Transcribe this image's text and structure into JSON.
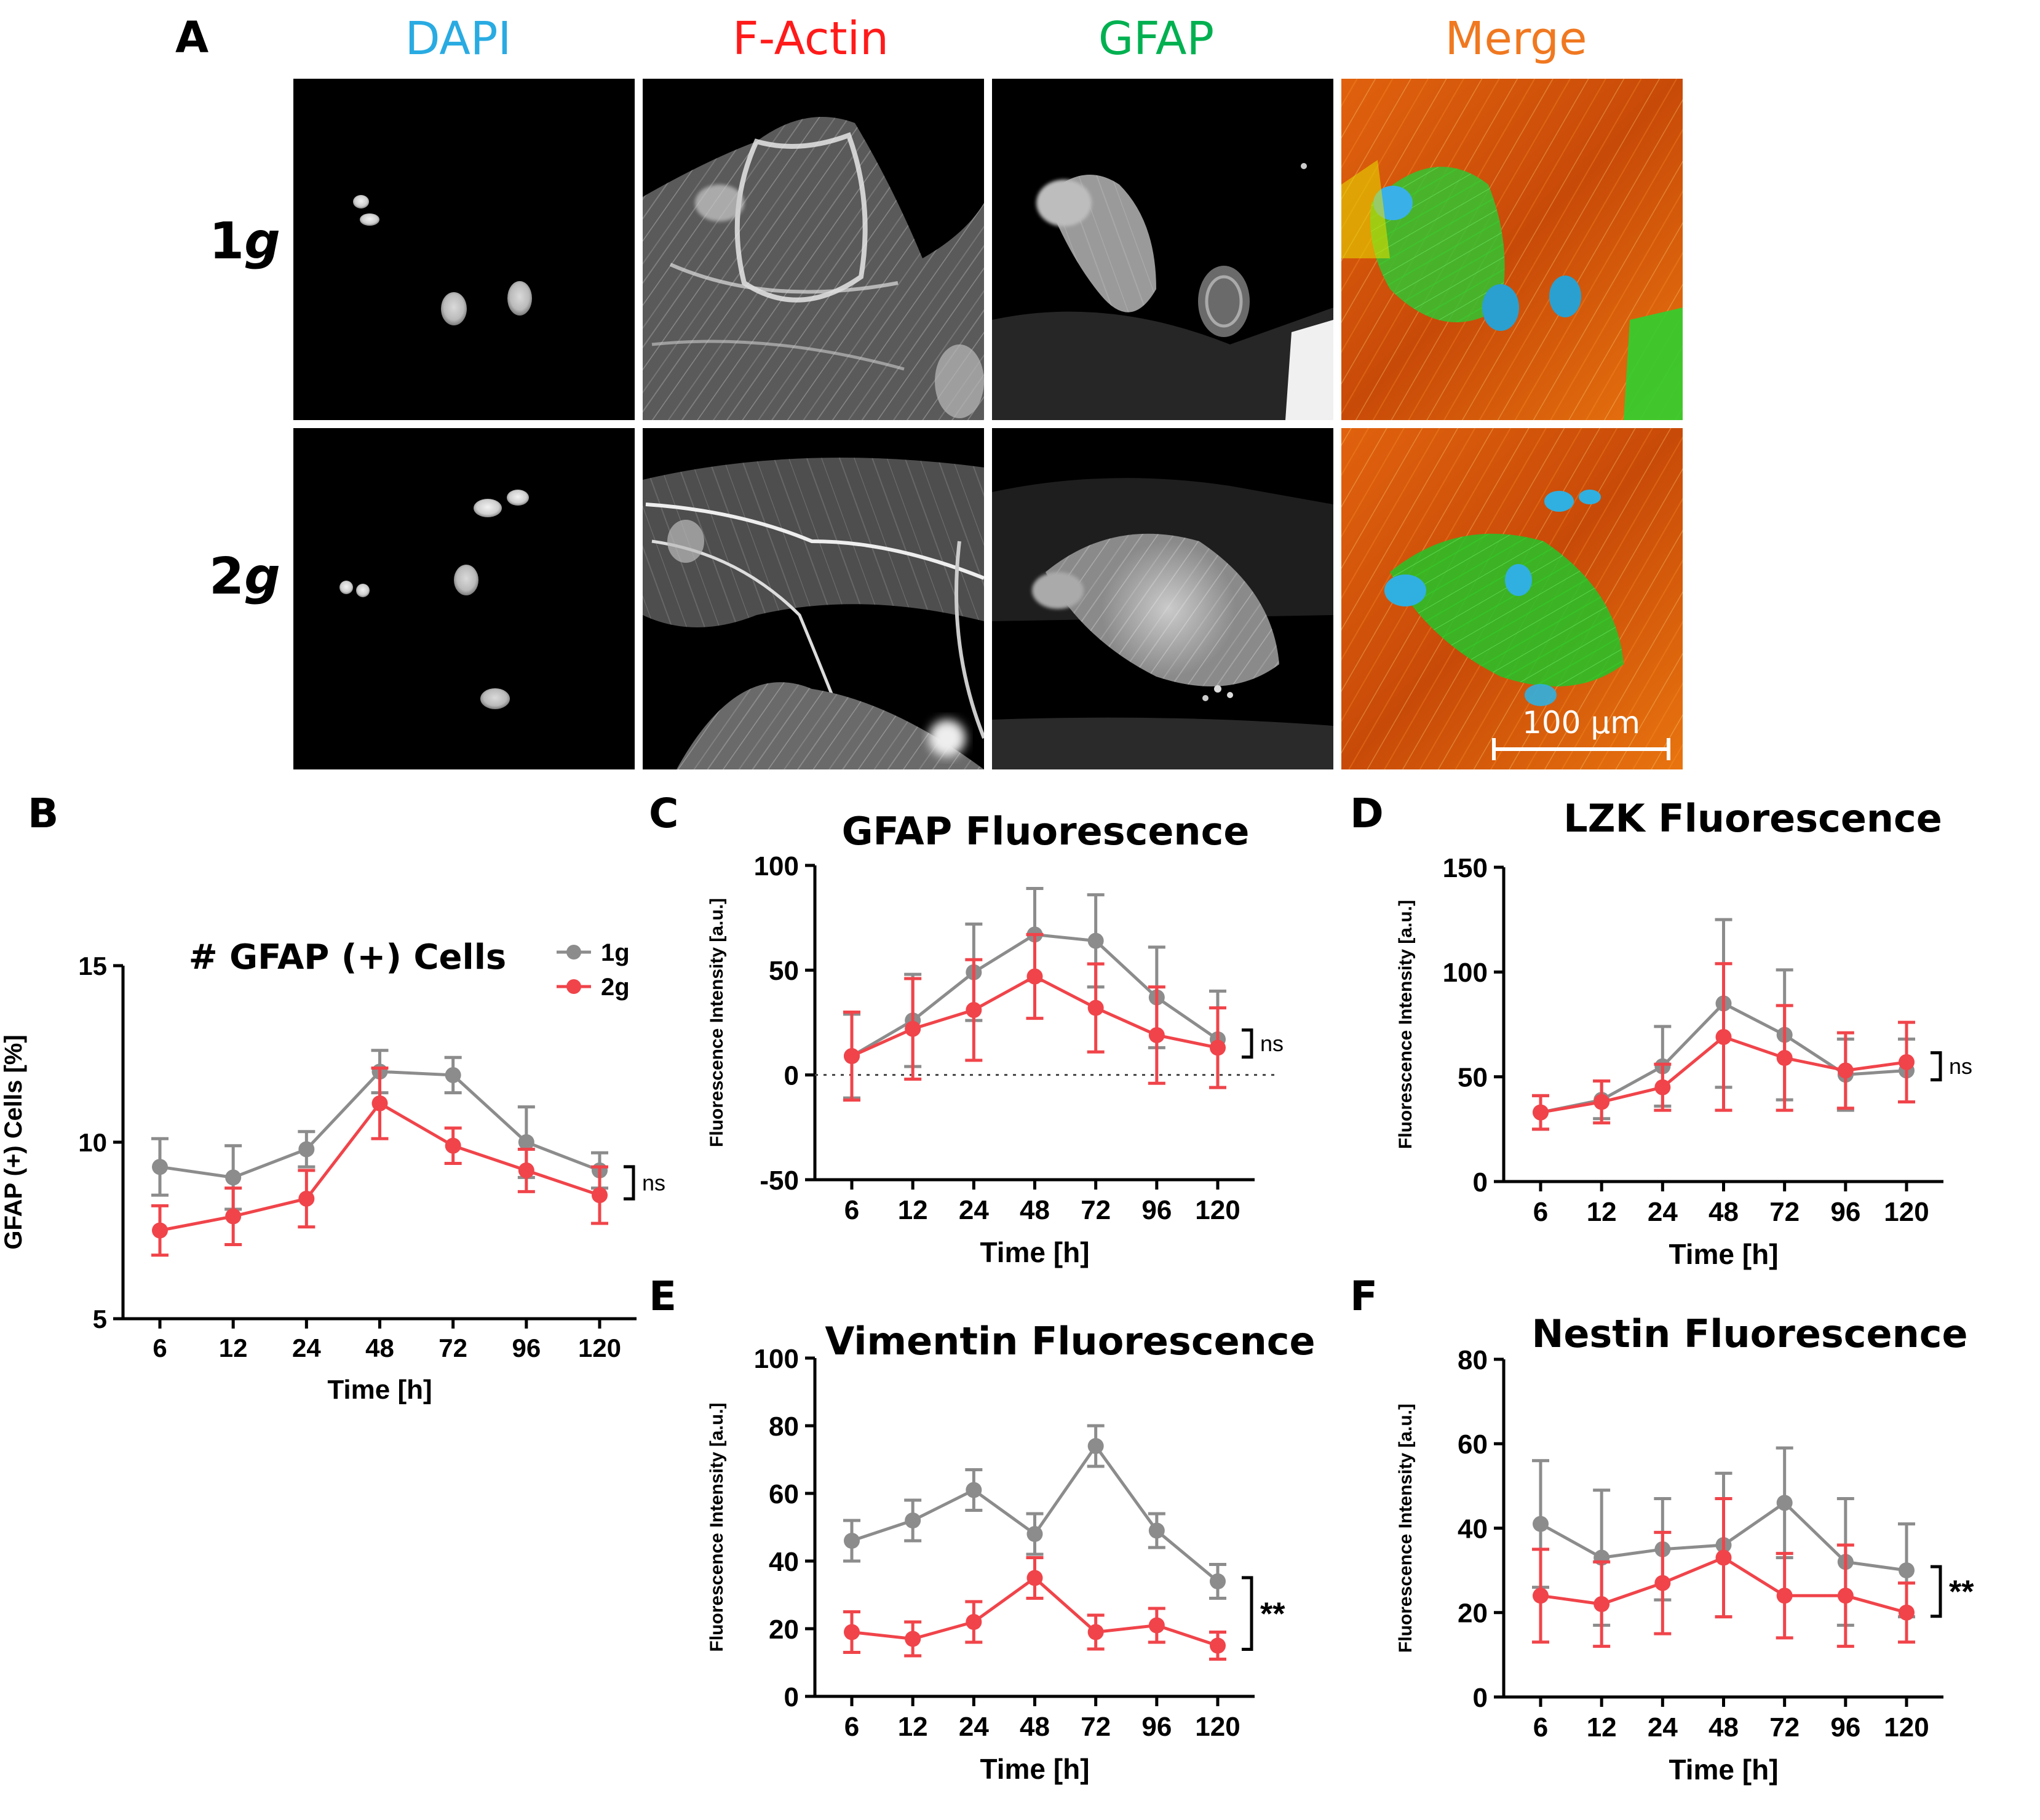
{
  "figure": {
    "panel_a": {
      "letter": "A",
      "channels": [
        {
          "label": "DAPI",
          "color": "#29abe2"
        },
        {
          "label": "F-Actin",
          "color": "#ff1a1a"
        },
        {
          "label": "GFAP",
          "color": "#00b050"
        },
        {
          "label": "Merge",
          "color": "#f07820"
        }
      ],
      "rows": [
        {
          "label_main": "1",
          "label_italic": "g"
        },
        {
          "label_main": "2",
          "label_italic": "g"
        }
      ],
      "scale_bar": "100 µm"
    },
    "colors": {
      "one_g": "#8c8c8c",
      "two_g": "#f0444a",
      "axis": "#000000"
    }
  },
  "chart_data": [
    {
      "id": "B",
      "letter": "B",
      "type": "line",
      "title": "# GFAP (+) Cells",
      "xlabel": "Time [h]",
      "ylabel": "GFAP (+) Cells [%]",
      "categories": [
        "6",
        "12",
        "24",
        "48",
        "72",
        "96",
        "120"
      ],
      "ylim": [
        5,
        15
      ],
      "yticks": [
        5,
        10,
        15
      ],
      "legend": {
        "position": "top-right",
        "entries": [
          "1g",
          "2g"
        ]
      },
      "series": [
        {
          "name": "1g",
          "values": [
            9.3,
            9.0,
            9.8,
            12.0,
            11.9,
            10.0,
            9.2
          ],
          "errors": [
            0.8,
            0.9,
            0.5,
            0.6,
            0.5,
            1.0,
            0.5
          ]
        },
        {
          "name": "2g",
          "values": [
            7.5,
            7.9,
            8.4,
            11.1,
            9.9,
            9.2,
            8.5
          ],
          "errors": [
            0.7,
            0.8,
            0.8,
            1.0,
            0.5,
            0.6,
            0.8
          ]
        }
      ],
      "significance": "ns",
      "zero_line": false
    },
    {
      "id": "C",
      "letter": "C",
      "type": "line",
      "title": "GFAP Fluorescence",
      "xlabel": "Time [h]",
      "ylabel": "Fluorescence Intensity [a.u.]",
      "categories": [
        "6",
        "12",
        "24",
        "48",
        "72",
        "96",
        "120"
      ],
      "ylim": [
        -50,
        100
      ],
      "yticks": [
        -50,
        0,
        50,
        100
      ],
      "series": [
        {
          "name": "1g",
          "values": [
            9,
            26,
            49,
            67,
            64,
            37,
            17
          ],
          "errors": [
            20,
            22,
            23,
            22,
            22,
            24,
            23
          ]
        },
        {
          "name": "2g",
          "values": [
            9,
            22,
            31,
            47,
            32,
            19,
            13
          ],
          "errors": [
            21,
            24,
            24,
            20,
            21,
            23,
            19
          ]
        }
      ],
      "significance": "ns",
      "zero_line": true
    },
    {
      "id": "D",
      "letter": "D",
      "type": "line",
      "title": "LZK Fluorescence",
      "xlabel": "Time [h]",
      "ylabel": "Fluorescence Intensity [a.u.]",
      "categories": [
        "6",
        "12",
        "24",
        "48",
        "72",
        "96",
        "120"
      ],
      "ylim": [
        0,
        150
      ],
      "yticks": [
        0,
        50,
        100,
        150
      ],
      "series": [
        {
          "name": "1g",
          "values": [
            33,
            39,
            55,
            85,
            70,
            51,
            53
          ],
          "errors": [
            8,
            9,
            19,
            40,
            31,
            17,
            15
          ]
        },
        {
          "name": "2g",
          "values": [
            33,
            38,
            45,
            69,
            59,
            53,
            57
          ],
          "errors": [
            8,
            10,
            11,
            35,
            25,
            18,
            19
          ]
        }
      ],
      "significance": "ns",
      "zero_line": false
    },
    {
      "id": "E",
      "letter": "E",
      "type": "line",
      "title": "Vimentin Fluorescence",
      "xlabel": "Time [h]",
      "ylabel": "Fluorescence Intensity [a.u.]",
      "categories": [
        "6",
        "12",
        "24",
        "48",
        "72",
        "96",
        "120"
      ],
      "ylim": [
        0,
        100
      ],
      "yticks": [
        0,
        20,
        40,
        60,
        80,
        100
      ],
      "series": [
        {
          "name": "1g",
          "values": [
            46,
            52,
            61,
            48,
            74,
            49,
            34
          ],
          "errors": [
            6,
            6,
            6,
            6,
            6,
            5,
            5
          ]
        },
        {
          "name": "2g",
          "values": [
            19,
            17,
            22,
            35,
            19,
            21,
            15
          ],
          "errors": [
            6,
            5,
            6,
            6,
            5,
            5,
            4
          ]
        }
      ],
      "significance": "**",
      "zero_line": false
    },
    {
      "id": "F",
      "letter": "F",
      "type": "line",
      "title": "Nestin Fluorescence",
      "xlabel": "Time [h]",
      "ylabel": "Fluorescence Intensity [a.u.]",
      "categories": [
        "6",
        "12",
        "24",
        "48",
        "72",
        "96",
        "120"
      ],
      "ylim": [
        0,
        80
      ],
      "yticks": [
        0,
        20,
        40,
        60,
        80
      ],
      "series": [
        {
          "name": "1g",
          "values": [
            41,
            33,
            35,
            36,
            46,
            32,
            30
          ],
          "errors": [
            15,
            16,
            12,
            17,
            13,
            15,
            11
          ]
        },
        {
          "name": "2g",
          "values": [
            24,
            22,
            27,
            33,
            24,
            24,
            20
          ],
          "errors": [
            11,
            10,
            12,
            14,
            10,
            12,
            7
          ]
        }
      ],
      "significance": "**",
      "zero_line": false
    }
  ]
}
